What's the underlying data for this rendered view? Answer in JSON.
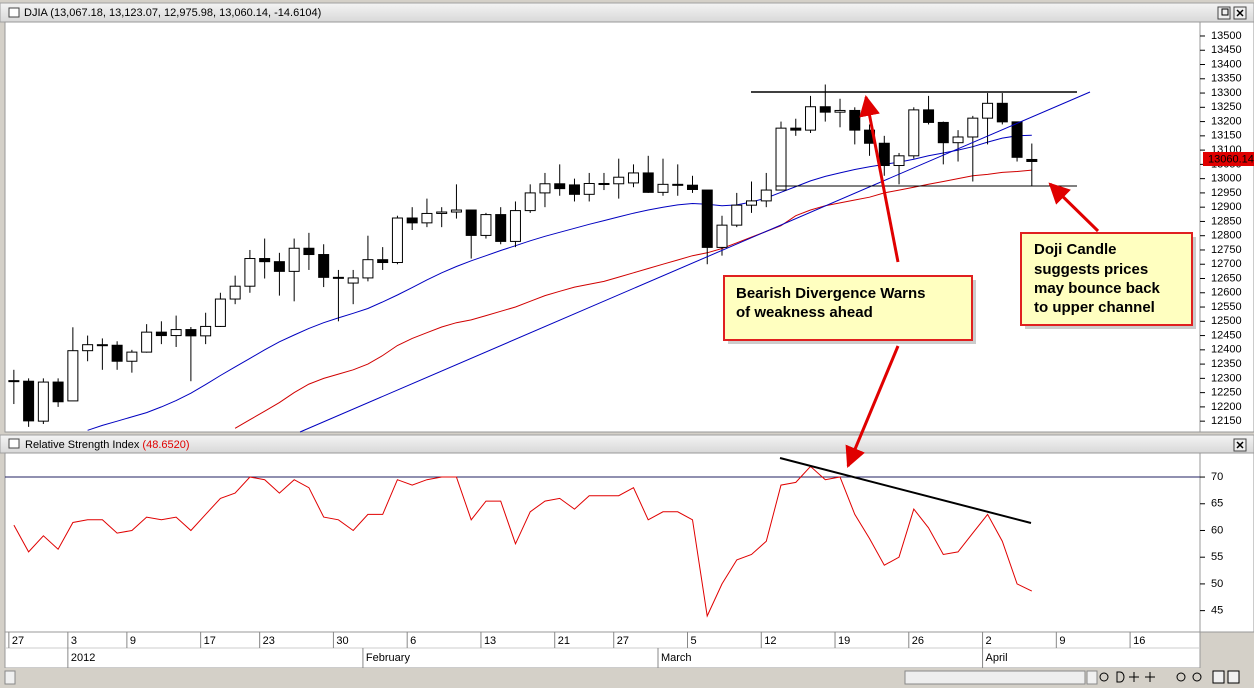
{
  "chart_data": [
    {
      "type": "candlestick",
      "title": "DJIA (13,067.18, 13,123.07, 12,975.98, 13,060.14, -14.6104)",
      "categories": [
        "27",
        null,
        null,
        null,
        "3",
        null,
        null,
        null,
        "9",
        null,
        null,
        null,
        null,
        "17",
        null,
        null,
        null,
        "23",
        null,
        null,
        null,
        null,
        "30",
        null,
        null,
        null,
        null,
        "6",
        null,
        null,
        null,
        null,
        "13",
        null,
        null,
        null,
        null,
        "21",
        null,
        null,
        null,
        "27",
        null,
        null,
        null,
        null,
        "5",
        null,
        null,
        null,
        null,
        "12",
        null,
        null,
        null,
        null,
        "19",
        null,
        null,
        null,
        null,
        "26",
        null,
        null,
        null,
        null,
        "2",
        null,
        null,
        null,
        null,
        "9",
        null,
        null,
        null,
        null,
        "16"
      ],
      "months": [
        {
          "label": "2012",
          "at": 4
        },
        {
          "label": "February",
          "at": 24
        },
        {
          "label": "March",
          "at": 44
        },
        {
          "label": "April",
          "at": 66
        }
      ],
      "open": [
        12291,
        12290,
        12150,
        12287,
        12221,
        12397,
        12418,
        12416,
        12360,
        12392,
        12462,
        12450,
        12471,
        12449,
        12482,
        12578,
        12623,
        12720,
        12709,
        12675,
        12756,
        12734,
        12654,
        12634,
        12652,
        12716,
        12706,
        12862,
        12845,
        12878,
        12883,
        12890,
        12801,
        12874,
        12780,
        12888,
        12950,
        12982,
        12978,
        12945,
        12983,
        12982,
        12985,
        13020,
        12952,
        12980,
        12977,
        12960,
        12759,
        12837,
        12907,
        12922,
        12960,
        13177,
        13170,
        13252,
        13233,
        13239,
        13170,
        13124,
        13046,
        13080,
        13241,
        13197,
        13126,
        13146,
        13212,
        13264,
        13199,
        13067.18,
        null,
        null,
        null,
        null,
        null,
        null,
        null
      ],
      "high": [
        12330,
        12300,
        12300,
        12300,
        12479,
        12450,
        12440,
        12430,
        12400,
        12490,
        12500,
        12520,
        12480,
        12530,
        12600,
        12660,
        12750,
        12790,
        12740,
        12790,
        12810,
        12770,
        12680,
        12680,
        12800,
        12760,
        12870,
        12900,
        12930,
        12900,
        12980,
        12890,
        12880,
        12900,
        12920,
        12980,
        13020,
        13050,
        13000,
        13020,
        13020,
        13070,
        13050,
        13080,
        13070,
        13050,
        13010,
        12960,
        12870,
        12950,
        12990,
        13020,
        13200,
        13210,
        13290,
        13330,
        13280,
        13250,
        13190,
        13150,
        13090,
        13250,
        13290,
        13200,
        13170,
        13220,
        13300,
        13300,
        13200,
        13123.07,
        null,
        null,
        null,
        null,
        null,
        null,
        null
      ],
      "low": [
        12210,
        12130,
        12140,
        12200,
        12221,
        12360,
        12330,
        12330,
        12320,
        12390,
        12420,
        12410,
        12290,
        12420,
        12480,
        12560,
        12600,
        12650,
        12590,
        12570,
        12680,
        12620,
        12500,
        12560,
        12640,
        12680,
        12700,
        12820,
        12830,
        12830,
        12860,
        12720,
        12790,
        12770,
        12760,
        12880,
        12900,
        12940,
        12920,
        12920,
        12960,
        12930,
        12970,
        12950,
        12940,
        12940,
        12950,
        12700,
        12730,
        12830,
        12880,
        12900,
        12960,
        13150,
        13160,
        13200,
        13180,
        13120,
        13080,
        13010,
        12980,
        13070,
        13190,
        13050,
        13060,
        12990,
        13120,
        13190,
        13060,
        12975.98,
        null,
        null,
        null,
        null,
        null,
        null,
        null
      ],
      "close": [
        12292,
        12151,
        12287,
        12218,
        12397,
        12418,
        12416,
        12360,
        12392,
        12462,
        12450,
        12471,
        12449,
        12482,
        12578,
        12623,
        12720,
        12709,
        12675,
        12756,
        12734,
        12654,
        12653,
        12652,
        12716,
        12706,
        12862,
        12845,
        12878,
        12883,
        12890,
        12801,
        12874,
        12780,
        12888,
        12950,
        12982,
        12965,
        12945,
        12983,
        12982,
        13005,
        13020,
        12952,
        12980,
        12977,
        12962,
        12759,
        12837,
        12907,
        12922,
        12960,
        13177,
        13170,
        13252,
        13233,
        13239,
        13170,
        13124,
        13046,
        13080,
        13241,
        13197,
        13126,
        13146,
        13212,
        13264,
        13199,
        13074.75,
        13060.14,
        null,
        null,
        null,
        null,
        null,
        null,
        null
      ],
      "moving_averages": [
        {
          "color": "#0000c0",
          "values": [
            null,
            null,
            null,
            null,
            null,
            12118,
            12135,
            12150,
            12165,
            12180,
            12200,
            12222,
            12248,
            12278,
            12310,
            12340,
            12370,
            12400,
            12428,
            12452,
            12475,
            12495,
            12512,
            12528,
            12545,
            12568,
            12592,
            12618,
            12645,
            12670,
            12692,
            12712,
            12730,
            12748,
            12765,
            12782,
            12798,
            12812,
            12826,
            12840,
            12853,
            12866,
            12879,
            12890,
            12900,
            12908,
            12913,
            12910,
            12905,
            12908,
            12918,
            12932,
            12952,
            12972,
            12992,
            13008,
            13020,
            13032,
            13042,
            13050,
            13058,
            13068,
            13080,
            13090,
            13100,
            13112,
            13128,
            13142,
            13150,
            13152,
            null,
            null,
            null,
            null,
            null,
            null,
            null
          ]
        },
        {
          "color": "#d00000",
          "values": [
            null,
            null,
            null,
            null,
            null,
            null,
            null,
            null,
            null,
            null,
            null,
            null,
            null,
            null,
            null,
            12125,
            12155,
            12185,
            12215,
            12250,
            12280,
            12300,
            12315,
            12330,
            12350,
            12380,
            12415,
            12440,
            12460,
            12480,
            12495,
            12505,
            12520,
            12535,
            12550,
            12570,
            12590,
            12605,
            12620,
            12630,
            12640,
            12655,
            12670,
            12685,
            12700,
            12715,
            12730,
            12740,
            12755,
            12775,
            12795,
            12815,
            12835,
            12870,
            12890,
            12905,
            12915,
            12925,
            12935,
            12950,
            12960,
            12970,
            12980,
            12990,
            13000,
            13010,
            13015,
            13022,
            13025,
            13030,
            null,
            null,
            null,
            null,
            null,
            null,
            null
          ]
        }
      ],
      "xlim": [
        -0.6,
        80.4
      ],
      "ylim": [
        12112,
        13549
      ],
      "yticks": [
        12150,
        12200,
        12250,
        12300,
        12350,
        12400,
        12450,
        12500,
        12550,
        12600,
        12650,
        12700,
        12750,
        12800,
        12850,
        12900,
        12950,
        13000,
        13050,
        13100,
        13150,
        13200,
        13250,
        13300,
        13350,
        13400,
        13450,
        13500
      ],
      "annotations": [
        {
          "lines": [
            "Bearish Divergence Warns",
            "of weakness ahead"
          ]
        },
        {
          "lines": [
            "Doji Candle",
            "suggests prices",
            "may bounce back",
            "to upper channel"
          ]
        }
      ]
    },
    {
      "type": "line",
      "name": "Relative Strength Index",
      "value_label": "(48.6520)",
      "color": "#e00000",
      "values": [
        61,
        56,
        59,
        56.5,
        61.5,
        62,
        62,
        59.5,
        60,
        62.5,
        62,
        62.5,
        60,
        63,
        66,
        67,
        70,
        69.5,
        67,
        69.5,
        68,
        62.5,
        62,
        60,
        63,
        63,
        69.5,
        68.5,
        69.5,
        70,
        70,
        62,
        65.5,
        65.5,
        57.5,
        63.5,
        65.5,
        66,
        64,
        66.5,
        66.5,
        66.5,
        68,
        62,
        63.5,
        63.5,
        62,
        44,
        50,
        54.5,
        55.5,
        58,
        68.5,
        69,
        72,
        69.5,
        70,
        63,
        58.5,
        53.5,
        55,
        64,
        60.5,
        55.5,
        56,
        59.5,
        63,
        58,
        50,
        48.652
      ],
      "hline": 70,
      "xlim": [
        -0.6,
        80.4
      ],
      "ylim": [
        41,
        74.5
      ],
      "yticks": [
        45,
        50,
        55,
        60,
        65,
        70
      ]
    }
  ]
}
